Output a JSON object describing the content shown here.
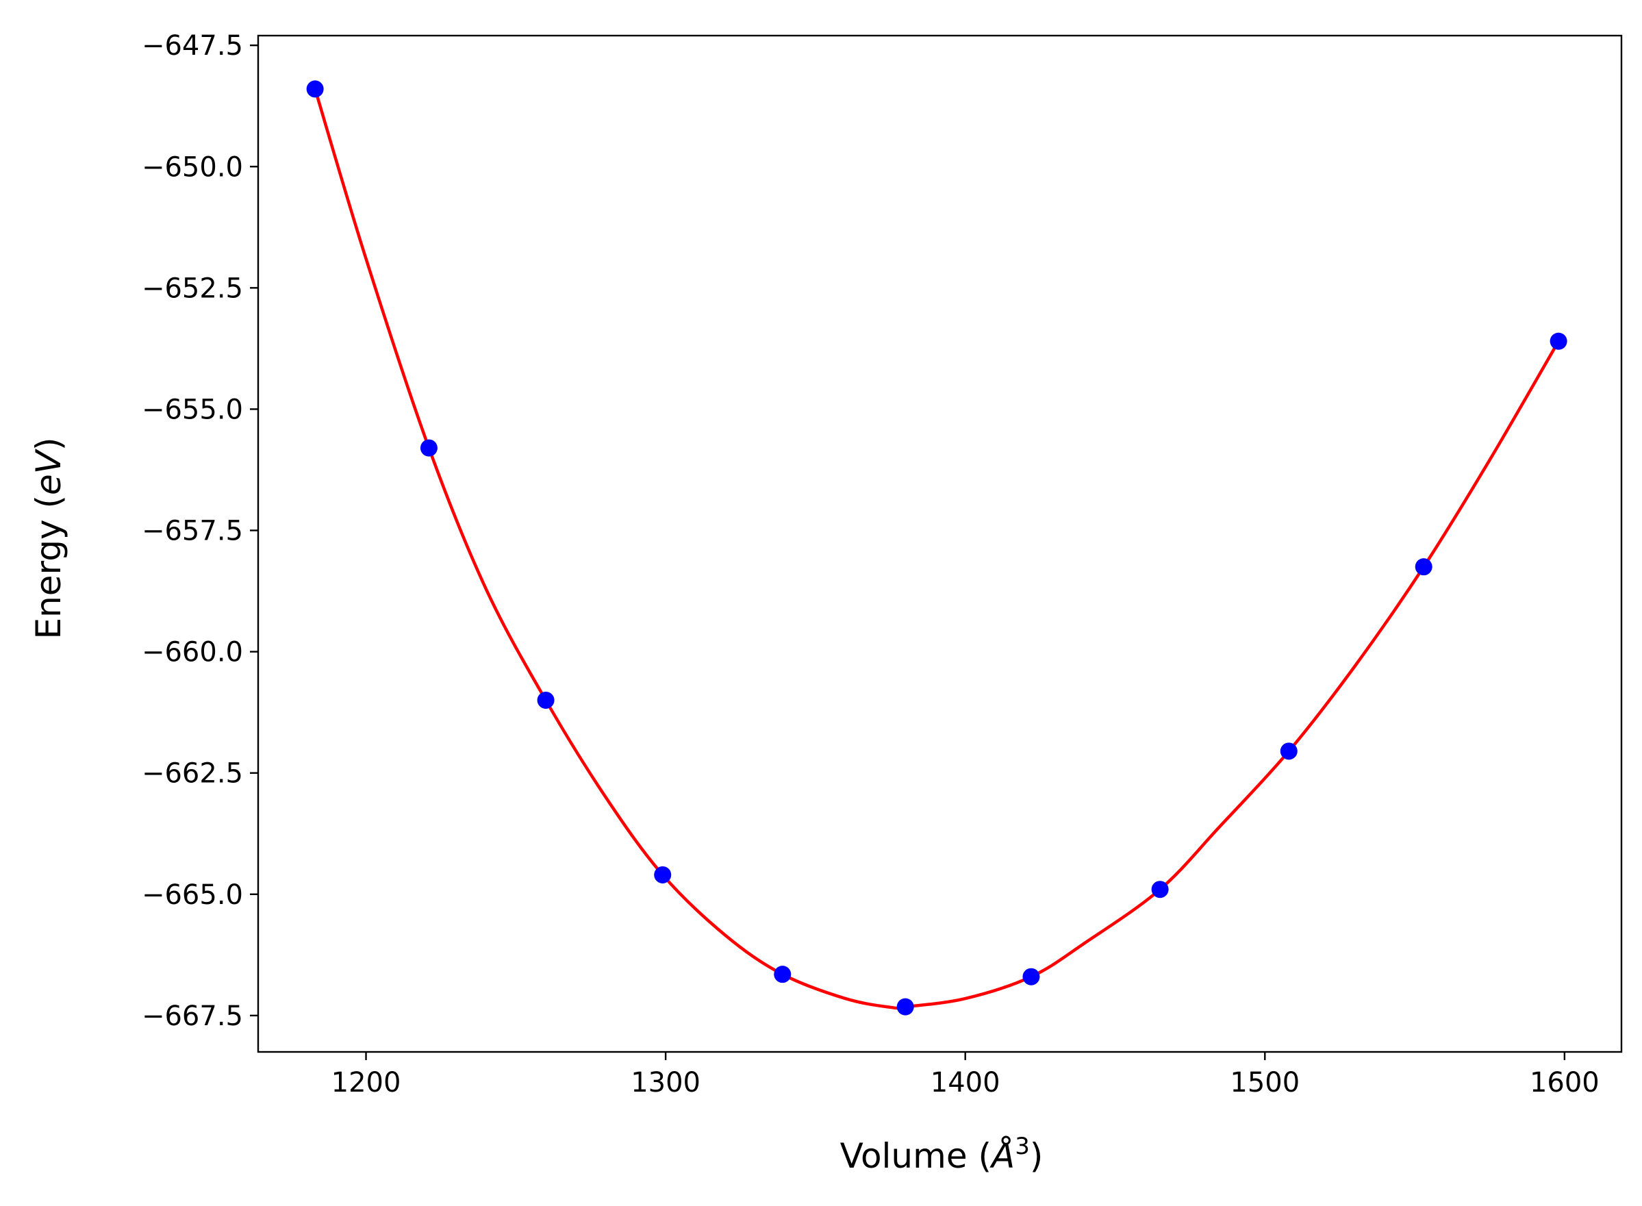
{
  "chart_data": {
    "type": "scatter",
    "title": "",
    "xlabel_text": "Volume (",
    "xlabel_math": "Å",
    "xlabel_sup": "3",
    "xlabel_end": ")",
    "ylabel_text": "Energy (",
    "ylabel_math": "eV",
    "ylabel_end": ")",
    "xlim": [
      1164,
      1619
    ],
    "ylim": [
      -668.25,
      -647.3
    ],
    "xticks": [
      1200,
      1300,
      1400,
      1500,
      1600
    ],
    "xtick_labels": [
      "1200",
      "1300",
      "1400",
      "1500",
      "1600"
    ],
    "yticks": [
      -647.5,
      -650.0,
      -652.5,
      -655.0,
      -657.5,
      -660.0,
      -662.5,
      -665.0,
      -667.5
    ],
    "ytick_labels": [
      "−647.5",
      "−650.0",
      "−652.5",
      "−655.0",
      "−657.5",
      "−660.0",
      "−662.5",
      "−665.0",
      "−667.5"
    ],
    "grid": false,
    "series": [
      {
        "kind": "points",
        "color": "#0000ff",
        "x": [
          1183,
          1221,
          1260,
          1299,
          1339,
          1380,
          1422,
          1465,
          1508,
          1553,
          1598
        ],
        "y": [
          -648.4,
          -655.8,
          -661.0,
          -664.6,
          -666.65,
          -667.32,
          -666.7,
          -664.9,
          -662.05,
          -658.25,
          -653.6
        ]
      },
      {
        "kind": "fit-line",
        "color": "#ff0000",
        "x": [
          1183,
          1200,
          1221,
          1240,
          1260,
          1280,
          1299,
          1320,
          1339,
          1360,
          1375,
          1380,
          1400,
          1422,
          1440,
          1465,
          1485,
          1508,
          1530,
          1553,
          1575,
          1598
        ],
        "y": [
          -648.4,
          -651.9,
          -655.8,
          -658.7,
          -661.0,
          -663.0,
          -664.6,
          -665.85,
          -666.65,
          -667.15,
          -667.33,
          -667.32,
          -667.15,
          -666.7,
          -666.0,
          -664.9,
          -663.6,
          -662.05,
          -660.3,
          -658.25,
          -656.05,
          -653.6
        ]
      }
    ]
  }
}
